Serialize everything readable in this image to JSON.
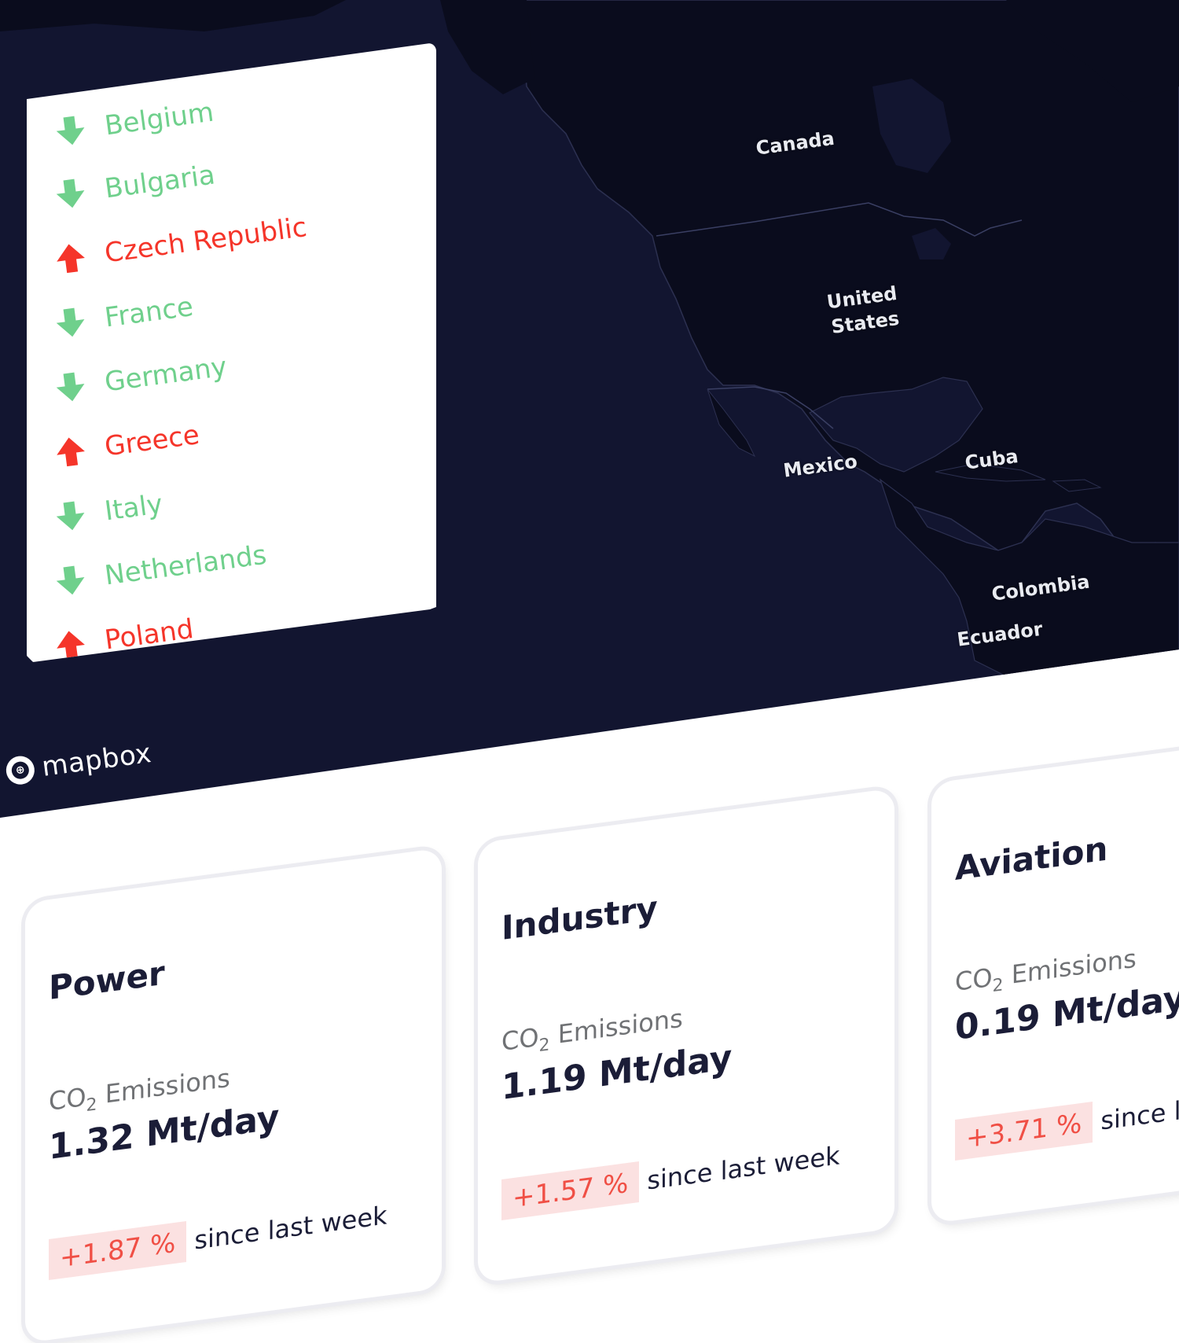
{
  "map": {
    "labels": {
      "canada": "Canada",
      "united_states_1": "United",
      "united_states_2": "States",
      "mexico": "Mexico",
      "cuba": "Cuba",
      "colombia": "Colombia",
      "ecuador": "Ecuador"
    },
    "attribution": "mapbox",
    "background_color": "#121530",
    "land_color": "#0a0c1d"
  },
  "country_list": {
    "items": [
      {
        "name": "Belgium",
        "trend": "down"
      },
      {
        "name": "Bulgaria",
        "trend": "down"
      },
      {
        "name": "Czech Republic",
        "trend": "up"
      },
      {
        "name": "France",
        "trend": "down"
      },
      {
        "name": "Germany",
        "trend": "down"
      },
      {
        "name": "Greece",
        "trend": "up"
      },
      {
        "name": "Italy",
        "trend": "down"
      },
      {
        "name": "Netherlands",
        "trend": "down"
      },
      {
        "name": "Poland",
        "trend": "up"
      }
    ],
    "colors": {
      "down": "#6fd08c",
      "up": "#f5352a"
    }
  },
  "sectors": [
    {
      "title": "Power",
      "metric_prefix": "CO",
      "metric_sub": "2",
      "metric_suffix": " Emissions",
      "value": "1.32 Mt/day",
      "change": "+1.87 %",
      "change_text": "since last week"
    },
    {
      "title": "Industry",
      "metric_prefix": "CO",
      "metric_sub": "2",
      "metric_suffix": " Emissions",
      "value": "1.19 Mt/day",
      "change": "+1.57 %",
      "change_text": "since last week"
    },
    {
      "title": "Aviation",
      "metric_prefix": "CO",
      "metric_sub": "2",
      "metric_suffix": " Emissions",
      "value": "0.19 Mt/day",
      "change": "+3.71 %",
      "change_text": "since la"
    }
  ]
}
